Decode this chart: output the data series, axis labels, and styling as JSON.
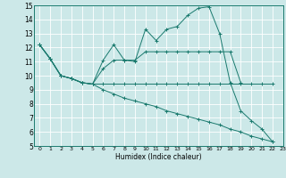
{
  "xlabel": "Humidex (Indice chaleur)",
  "x_ticks": [
    0,
    1,
    2,
    3,
    4,
    5,
    6,
    7,
    8,
    9,
    10,
    11,
    12,
    13,
    14,
    15,
    16,
    17,
    18,
    19,
    20,
    21,
    22,
    23
  ],
  "ylim": [
    5,
    15
  ],
  "xlim": [
    -0.5,
    23
  ],
  "yticks": [
    5,
    6,
    7,
    8,
    9,
    10,
    11,
    12,
    13,
    14,
    15
  ],
  "line_color": "#1a7a6e",
  "bg_color": "#cce8e8",
  "grid_color": "#ffffff",
  "line1_x": [
    0,
    1,
    2,
    3,
    4,
    5,
    6,
    7,
    8,
    9,
    10,
    11,
    12,
    13,
    14,
    15,
    16,
    17,
    18,
    19,
    20,
    21,
    22
  ],
  "line1_y": [
    12.2,
    11.2,
    10.0,
    9.8,
    9.5,
    9.4,
    11.1,
    12.2,
    11.1,
    11.0,
    13.3,
    12.5,
    13.3,
    13.5,
    14.3,
    14.8,
    14.9,
    13.0,
    9.5,
    7.5,
    6.8,
    6.2,
    5.3
  ],
  "line2_x": [
    0,
    1,
    2,
    3,
    4,
    5,
    6,
    7,
    8,
    9,
    10,
    11,
    12,
    13,
    14,
    15,
    16,
    17,
    18,
    19
  ],
  "line2_y": [
    12.2,
    11.2,
    10.0,
    9.8,
    9.5,
    9.4,
    10.5,
    11.1,
    11.1,
    11.1,
    11.7,
    11.7,
    11.7,
    11.7,
    11.7,
    11.7,
    11.7,
    11.7,
    11.7,
    9.5
  ],
  "line3_x": [
    0,
    1,
    2,
    3,
    4,
    5,
    6,
    7,
    8,
    9,
    10,
    11,
    12,
    13,
    14,
    15,
    16,
    17,
    18,
    19,
    20,
    21,
    22
  ],
  "line3_y": [
    12.2,
    11.2,
    10.0,
    9.8,
    9.5,
    9.4,
    9.4,
    9.4,
    9.4,
    9.4,
    9.4,
    9.4,
    9.4,
    9.4,
    9.4,
    9.4,
    9.4,
    9.4,
    9.4,
    9.4,
    9.4,
    9.4,
    9.4
  ],
  "line4_x": [
    0,
    1,
    2,
    3,
    4,
    5,
    6,
    7,
    8,
    9,
    10,
    11,
    12,
    13,
    14,
    15,
    16,
    17,
    18,
    19,
    20,
    21,
    22
  ],
  "line4_y": [
    12.2,
    11.2,
    10.0,
    9.8,
    9.5,
    9.4,
    9.0,
    8.7,
    8.4,
    8.2,
    8.0,
    7.8,
    7.5,
    7.3,
    7.1,
    6.9,
    6.7,
    6.5,
    6.2,
    6.0,
    5.7,
    5.5,
    5.3
  ]
}
